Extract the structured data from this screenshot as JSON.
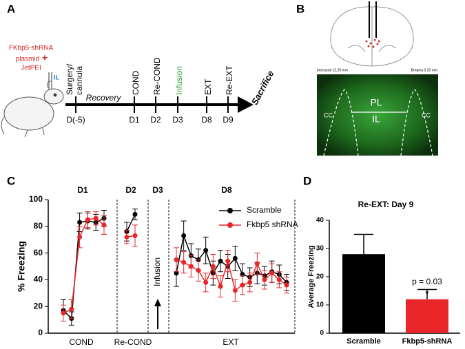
{
  "panel_labels": [
    "A",
    "B",
    "C",
    "D"
  ],
  "timeline": {
    "construct": [
      "FKbp5-shRNA",
      "plasmid",
      "+",
      "JetPEI"
    ],
    "region": "IL",
    "events": [
      {
        "above": "Surgery/ cannula",
        "day": "D(-5)"
      },
      {
        "above": "COND",
        "day": "D1"
      },
      {
        "above": "Re-COND",
        "day": "D2"
      },
      {
        "above": "Infusion",
        "day": "D3"
      },
      {
        "above": "EXT",
        "day": "D8"
      },
      {
        "above": "Re-EXT",
        "day": "D9"
      }
    ],
    "recovery": "Recovery",
    "end": "Sacrifice"
  },
  "histology": {
    "atlas_left": "Interaural 12.20 mm",
    "atlas_right": "Bregma 3.20 mm",
    "regions": [
      "PL",
      "IL",
      "CC",
      "CC"
    ]
  },
  "chart_data": [
    {
      "type": "line",
      "ylabel": "% Freezing",
      "ylim": [
        0,
        100
      ],
      "yticks": [
        0,
        20,
        40,
        60,
        80,
        100
      ],
      "series": [
        {
          "name": "Scramble",
          "color": "#000000"
        },
        {
          "name": "Fkbp5 shRNA",
          "color": "#e8262a"
        }
      ],
      "groups": [
        {
          "day": "D1",
          "label": "COND",
          "series": [
            {
              "values": [
                17,
                11,
                83,
                84,
                83,
                86
              ],
              "errors": [
                8,
                5,
                7,
                6,
                6,
                6
              ]
            },
            {
              "values": [
                15,
                18,
                72,
                85,
                86,
                81
              ],
              "errors": [
                6,
                7,
                8,
                6,
                5,
                7
              ]
            }
          ]
        },
        {
          "day": "D2",
          "label": "Re-COND",
          "series": [
            {
              "values": [
                76,
                89
              ],
              "errors": [
                7,
                4
              ]
            },
            {
              "values": [
                72,
                73
              ],
              "errors": [
                5,
                8
              ]
            }
          ]
        },
        {
          "day": "D3",
          "annotation": "Infusion"
        },
        {
          "day": "D8",
          "label": "EXT",
          "series": [
            {
              "values": [
                45,
                73,
                58,
                55,
                62,
                45,
                54,
                50,
                56,
                44,
                42,
                45,
                43,
                46,
                44,
                38
              ],
              "errors": [
                10,
                11,
                9,
                8,
                10,
                9,
                8,
                9,
                9,
                8,
                7,
                8,
                7,
                8,
                7,
                6
              ]
            },
            {
              "values": [
                55,
                53,
                50,
                47,
                38,
                50,
                35,
                54,
                32,
                36,
                38,
                52,
                40,
                45,
                40,
                36
              ],
              "errors": [
                9,
                8,
                8,
                8,
                7,
                9,
                8,
                8,
                8,
                7,
                7,
                8,
                7,
                7,
                6,
                6
              ]
            }
          ]
        }
      ]
    },
    {
      "type": "bar",
      "title": "Re-EXT: Day 9",
      "ylabel": "Average Freezing",
      "categories": [
        "Scramble",
        "Fkbp5-shRNA"
      ],
      "values": [
        28,
        12
      ],
      "errors": [
        7,
        3.5
      ],
      "colors": [
        "#000000",
        "#e8262a"
      ],
      "ylim": [
        0,
        40
      ],
      "yticks": [
        0,
        10,
        20,
        30,
        40
      ],
      "annotations": [
        "p = 0.03",
        "*"
      ]
    }
  ]
}
